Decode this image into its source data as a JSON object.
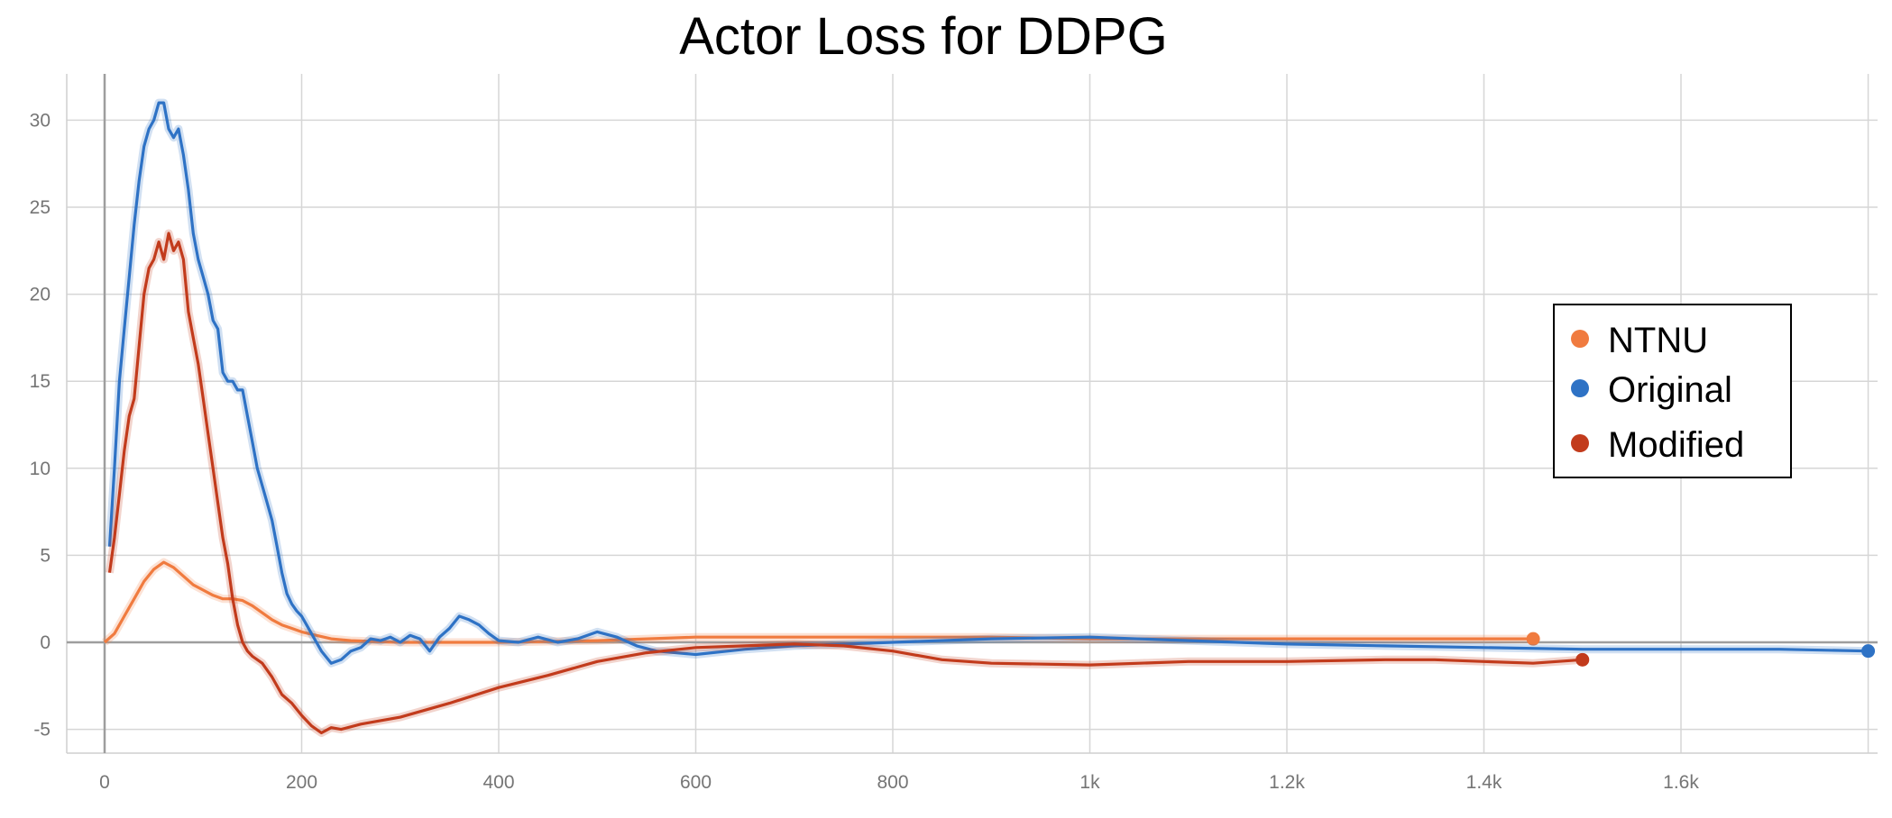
{
  "chart_data": {
    "type": "line",
    "title": "Actor Loss for DDPG",
    "xlabel": "",
    "ylabel": "",
    "xlim": [
      -40,
      1800
    ],
    "ylim": [
      -6.5,
      32.5
    ],
    "x_ticks": [
      0,
      200,
      400,
      600,
      800,
      1000,
      1200,
      1400,
      1600
    ],
    "x_tick_labels": [
      "0",
      "200",
      "400",
      "600",
      "800",
      "1k",
      "1.2k",
      "1.4k",
      "1.6k"
    ],
    "y_ticks": [
      -5,
      0,
      5,
      10,
      15,
      20,
      25,
      30
    ],
    "y_tick_labels": [
      "-5",
      "0",
      "5",
      "10",
      "15",
      "20",
      "25",
      "30"
    ],
    "grid": true,
    "legend_position": "right",
    "series": [
      {
        "name": "NTNU",
        "color": "#f07b3f",
        "x": [
          0,
          10,
          20,
          30,
          40,
          50,
          60,
          70,
          80,
          90,
          100,
          110,
          120,
          130,
          140,
          150,
          160,
          170,
          180,
          190,
          200,
          215,
          230,
          250,
          300,
          400,
          500,
          600,
          700,
          800,
          900,
          1000,
          1100,
          1200,
          1300,
          1400,
          1450
        ],
        "values": [
          0,
          0.5,
          1.5,
          2.5,
          3.5,
          4.2,
          4.6,
          4.3,
          3.8,
          3.3,
          3.0,
          2.7,
          2.5,
          2.5,
          2.4,
          2.1,
          1.7,
          1.3,
          1.0,
          0.8,
          0.6,
          0.4,
          0.2,
          0.1,
          0.0,
          0.0,
          0.1,
          0.3,
          0.3,
          0.3,
          0.3,
          0.2,
          0.2,
          0.2,
          0.2,
          0.2,
          0.2
        ]
      },
      {
        "name": "Original",
        "color": "#2e72c5",
        "x": [
          5,
          10,
          15,
          20,
          25,
          30,
          35,
          40,
          45,
          50,
          55,
          60,
          65,
          70,
          75,
          80,
          85,
          90,
          95,
          100,
          105,
          110,
          115,
          120,
          125,
          130,
          135,
          140,
          145,
          150,
          155,
          160,
          165,
          170,
          175,
          180,
          185,
          190,
          195,
          200,
          205,
          210,
          215,
          220,
          230,
          240,
          250,
          260,
          270,
          280,
          290,
          300,
          310,
          320,
          330,
          340,
          350,
          360,
          370,
          380,
          390,
          400,
          420,
          440,
          460,
          480,
          500,
          520,
          540,
          560,
          600,
          650,
          700,
          800,
          900,
          1000,
          1100,
          1200,
          1300,
          1400,
          1500,
          1600,
          1700,
          1790
        ],
        "values": [
          5.5,
          10,
          15,
          18,
          21,
          24,
          26.5,
          28.5,
          29.5,
          30,
          31,
          31,
          29.5,
          29,
          29.5,
          28,
          26,
          23.5,
          22,
          21,
          20,
          18.5,
          18,
          15.5,
          15,
          15,
          14.5,
          14.5,
          13,
          11.5,
          10,
          9,
          8,
          7,
          5.5,
          4,
          2.8,
          2.2,
          1.8,
          1.5,
          1.0,
          0.5,
          0.0,
          -0.5,
          -1.2,
          -1.0,
          -0.5,
          -0.3,
          0.2,
          0.1,
          0.3,
          0.0,
          0.4,
          0.2,
          -0.5,
          0.3,
          0.8,
          1.5,
          1.3,
          1.0,
          0.5,
          0.1,
          0.0,
          0.3,
          0.0,
          0.2,
          0.6,
          0.3,
          -0.2,
          -0.5,
          -0.7,
          -0.4,
          -0.2,
          0.0,
          0.2,
          0.3,
          0.1,
          -0.1,
          -0.2,
          -0.3,
          -0.4,
          -0.4,
          -0.4,
          -0.5
        ]
      },
      {
        "name": "Modified",
        "color": "#c23b1c",
        "x": [
          5,
          10,
          15,
          20,
          25,
          30,
          35,
          40,
          45,
          50,
          55,
          60,
          65,
          70,
          75,
          80,
          85,
          90,
          95,
          100,
          105,
          110,
          115,
          120,
          125,
          130,
          135,
          140,
          145,
          150,
          160,
          170,
          180,
          190,
          200,
          210,
          220,
          230,
          240,
          260,
          280,
          300,
          350,
          400,
          450,
          500,
          550,
          600,
          650,
          700,
          750,
          800,
          850,
          900,
          1000,
          1100,
          1200,
          1300,
          1350,
          1400,
          1450,
          1500
        ],
        "values": [
          4,
          6,
          8.5,
          11,
          13,
          14,
          17,
          20,
          21.5,
          22,
          23,
          22,
          23.5,
          22.5,
          23,
          22,
          19,
          17.5,
          16,
          14,
          12,
          10,
          8,
          6,
          4.5,
          2.5,
          1,
          0,
          -0.5,
          -0.8,
          -1.2,
          -2,
          -3,
          -3.5,
          -4.2,
          -4.8,
          -5.2,
          -4.9,
          -5.0,
          -4.7,
          -4.5,
          -4.3,
          -3.5,
          -2.6,
          -1.9,
          -1.1,
          -0.6,
          -0.3,
          -0.2,
          -0.1,
          -0.2,
          -0.5,
          -1.0,
          -1.2,
          -1.3,
          -1.1,
          -1.1,
          -1.0,
          -1.0,
          -1.1,
          -1.2,
          -1.0
        ]
      }
    ]
  }
}
